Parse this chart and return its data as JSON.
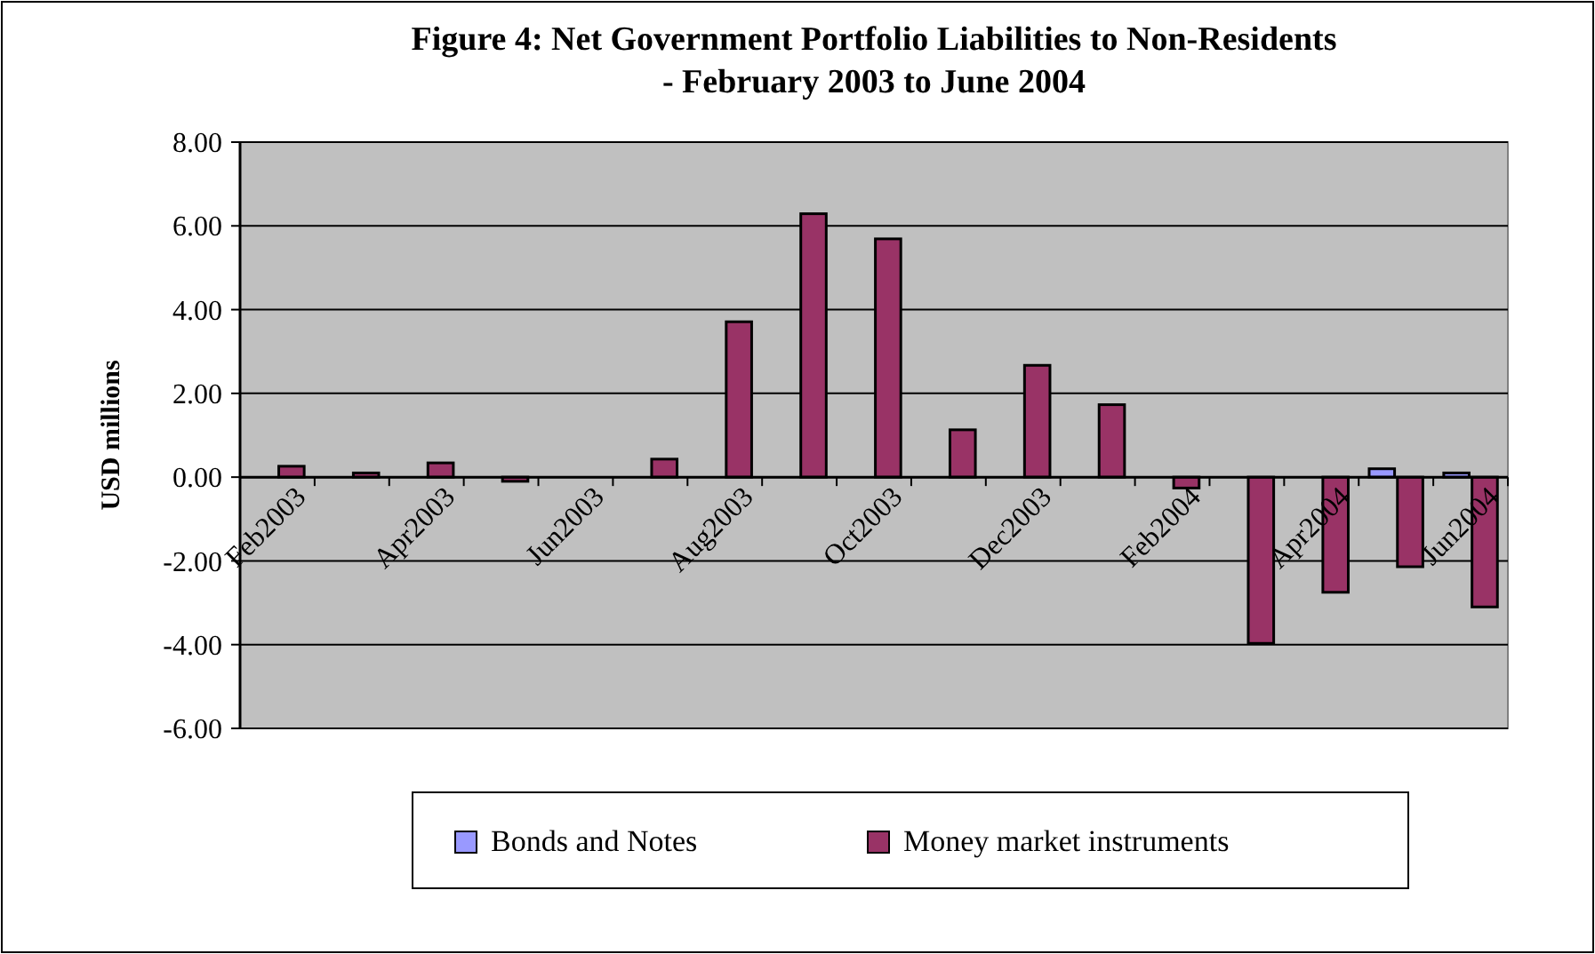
{
  "chart_data": {
    "type": "bar",
    "title": "Figure 4: Net Government Portfolio Liabilities to Non-Residents\n- February 2003 to June 2004",
    "ylabel": "USD millions",
    "categories": [
      "Feb2003",
      null,
      "Apr2003",
      null,
      "Jun2003",
      null,
      "Aug2003",
      null,
      "Oct2003",
      null,
      "Dec2003",
      null,
      "Feb2004",
      null,
      "Apr2004",
      null,
      "Jun2004"
    ],
    "series": [
      {
        "name": "Bonds and Notes",
        "color": "#9999ff",
        "values": [
          0,
          0,
          0,
          0,
          0,
          0,
          0,
          0,
          0,
          0,
          0,
          0,
          0,
          0,
          0,
          0.2,
          0.1
        ]
      },
      {
        "name": "Money market instruments",
        "color": "#993366",
        "values": [
          0.26,
          0.1,
          0.34,
          -0.1,
          0,
          0.43,
          3.71,
          6.29,
          5.69,
          1.13,
          2.67,
          1.73,
          -0.26,
          -3.97,
          -2.75,
          -2.14,
          -3.1
        ]
      }
    ],
    "ylim": [
      -6,
      8
    ],
    "yticks": [
      {
        "value": -6,
        "label": "-6.00"
      },
      {
        "value": -4,
        "label": "-4.00"
      },
      {
        "value": -2,
        "label": "-2.00"
      },
      {
        "value": 0,
        "label": "0.00"
      },
      {
        "value": 2,
        "label": "2.00"
      },
      {
        "value": 4,
        "label": "4.00"
      },
      {
        "value": 6,
        "label": "6.00"
      },
      {
        "value": 8,
        "label": "8.00"
      }
    ],
    "grid": "y",
    "legend": "bottom"
  }
}
